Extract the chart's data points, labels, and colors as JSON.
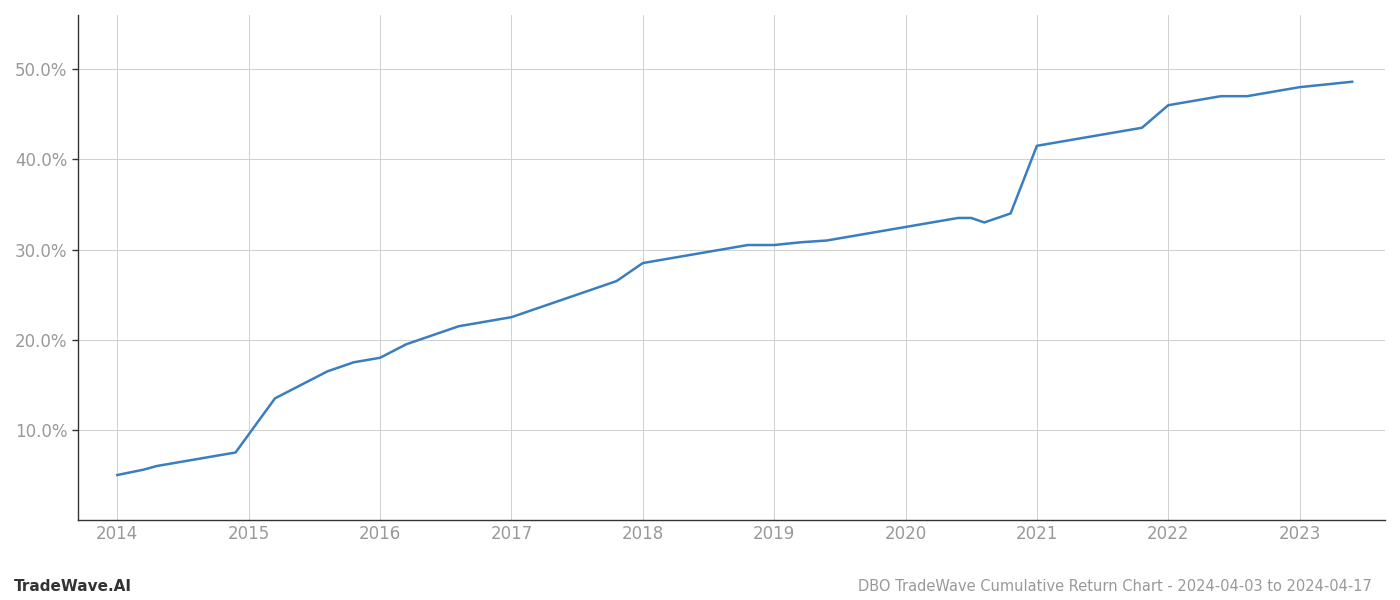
{
  "title": "DBO TradeWave Cumulative Return Chart - 2024-04-03 to 2024-04-17",
  "watermark": "TradeWave.AI",
  "line_color": "#3a7ebf",
  "background_color": "#ffffff",
  "grid_color": "#d0d0d0",
  "x_years": [
    2014,
    2015,
    2016,
    2017,
    2018,
    2019,
    2020,
    2021,
    2022,
    2023
  ],
  "data_x": [
    2014.0,
    2014.1,
    2014.2,
    2014.3,
    2014.5,
    2014.7,
    2014.9,
    2015.0,
    2015.1,
    2015.2,
    2015.4,
    2015.6,
    2015.8,
    2016.0,
    2016.2,
    2016.4,
    2016.6,
    2016.8,
    2017.0,
    2017.2,
    2017.4,
    2017.6,
    2017.8,
    2018.0,
    2018.2,
    2018.4,
    2018.6,
    2018.8,
    2019.0,
    2019.2,
    2019.4,
    2019.6,
    2019.8,
    2020.0,
    2020.2,
    2020.4,
    2020.5,
    2020.6,
    2020.8,
    2021.0,
    2021.2,
    2021.4,
    2021.6,
    2021.8,
    2022.0,
    2022.2,
    2022.4,
    2022.6,
    2022.8,
    2023.0,
    2023.2,
    2023.4
  ],
  "data_y": [
    5.0,
    5.3,
    5.6,
    6.0,
    6.5,
    7.0,
    7.5,
    9.5,
    11.5,
    13.5,
    15.0,
    16.5,
    17.5,
    18.0,
    19.5,
    20.5,
    21.5,
    22.0,
    22.5,
    23.5,
    24.5,
    25.5,
    26.5,
    28.5,
    29.0,
    29.5,
    30.0,
    30.5,
    30.5,
    30.8,
    31.0,
    31.5,
    32.0,
    32.5,
    33.0,
    33.5,
    33.5,
    33.0,
    34.0,
    41.5,
    42.0,
    42.5,
    43.0,
    43.5,
    46.0,
    46.5,
    47.0,
    47.0,
    47.5,
    48.0,
    48.3,
    48.6
  ],
  "ylim": [
    0,
    56
  ],
  "xlim": [
    2013.7,
    2023.65
  ],
  "yticks": [
    10.0,
    20.0,
    30.0,
    40.0,
    50.0
  ],
  "ytick_labels": [
    "10.0%",
    "20.0%",
    "30.0%",
    "40.0%",
    "50.0%"
  ],
  "line_width": 1.8,
  "title_fontsize": 10.5,
  "watermark_fontsize": 11,
  "tick_fontsize": 12,
  "tick_color": "#999999",
  "left_spine_color": "#333333",
  "bottom_spine_color": "#333333"
}
